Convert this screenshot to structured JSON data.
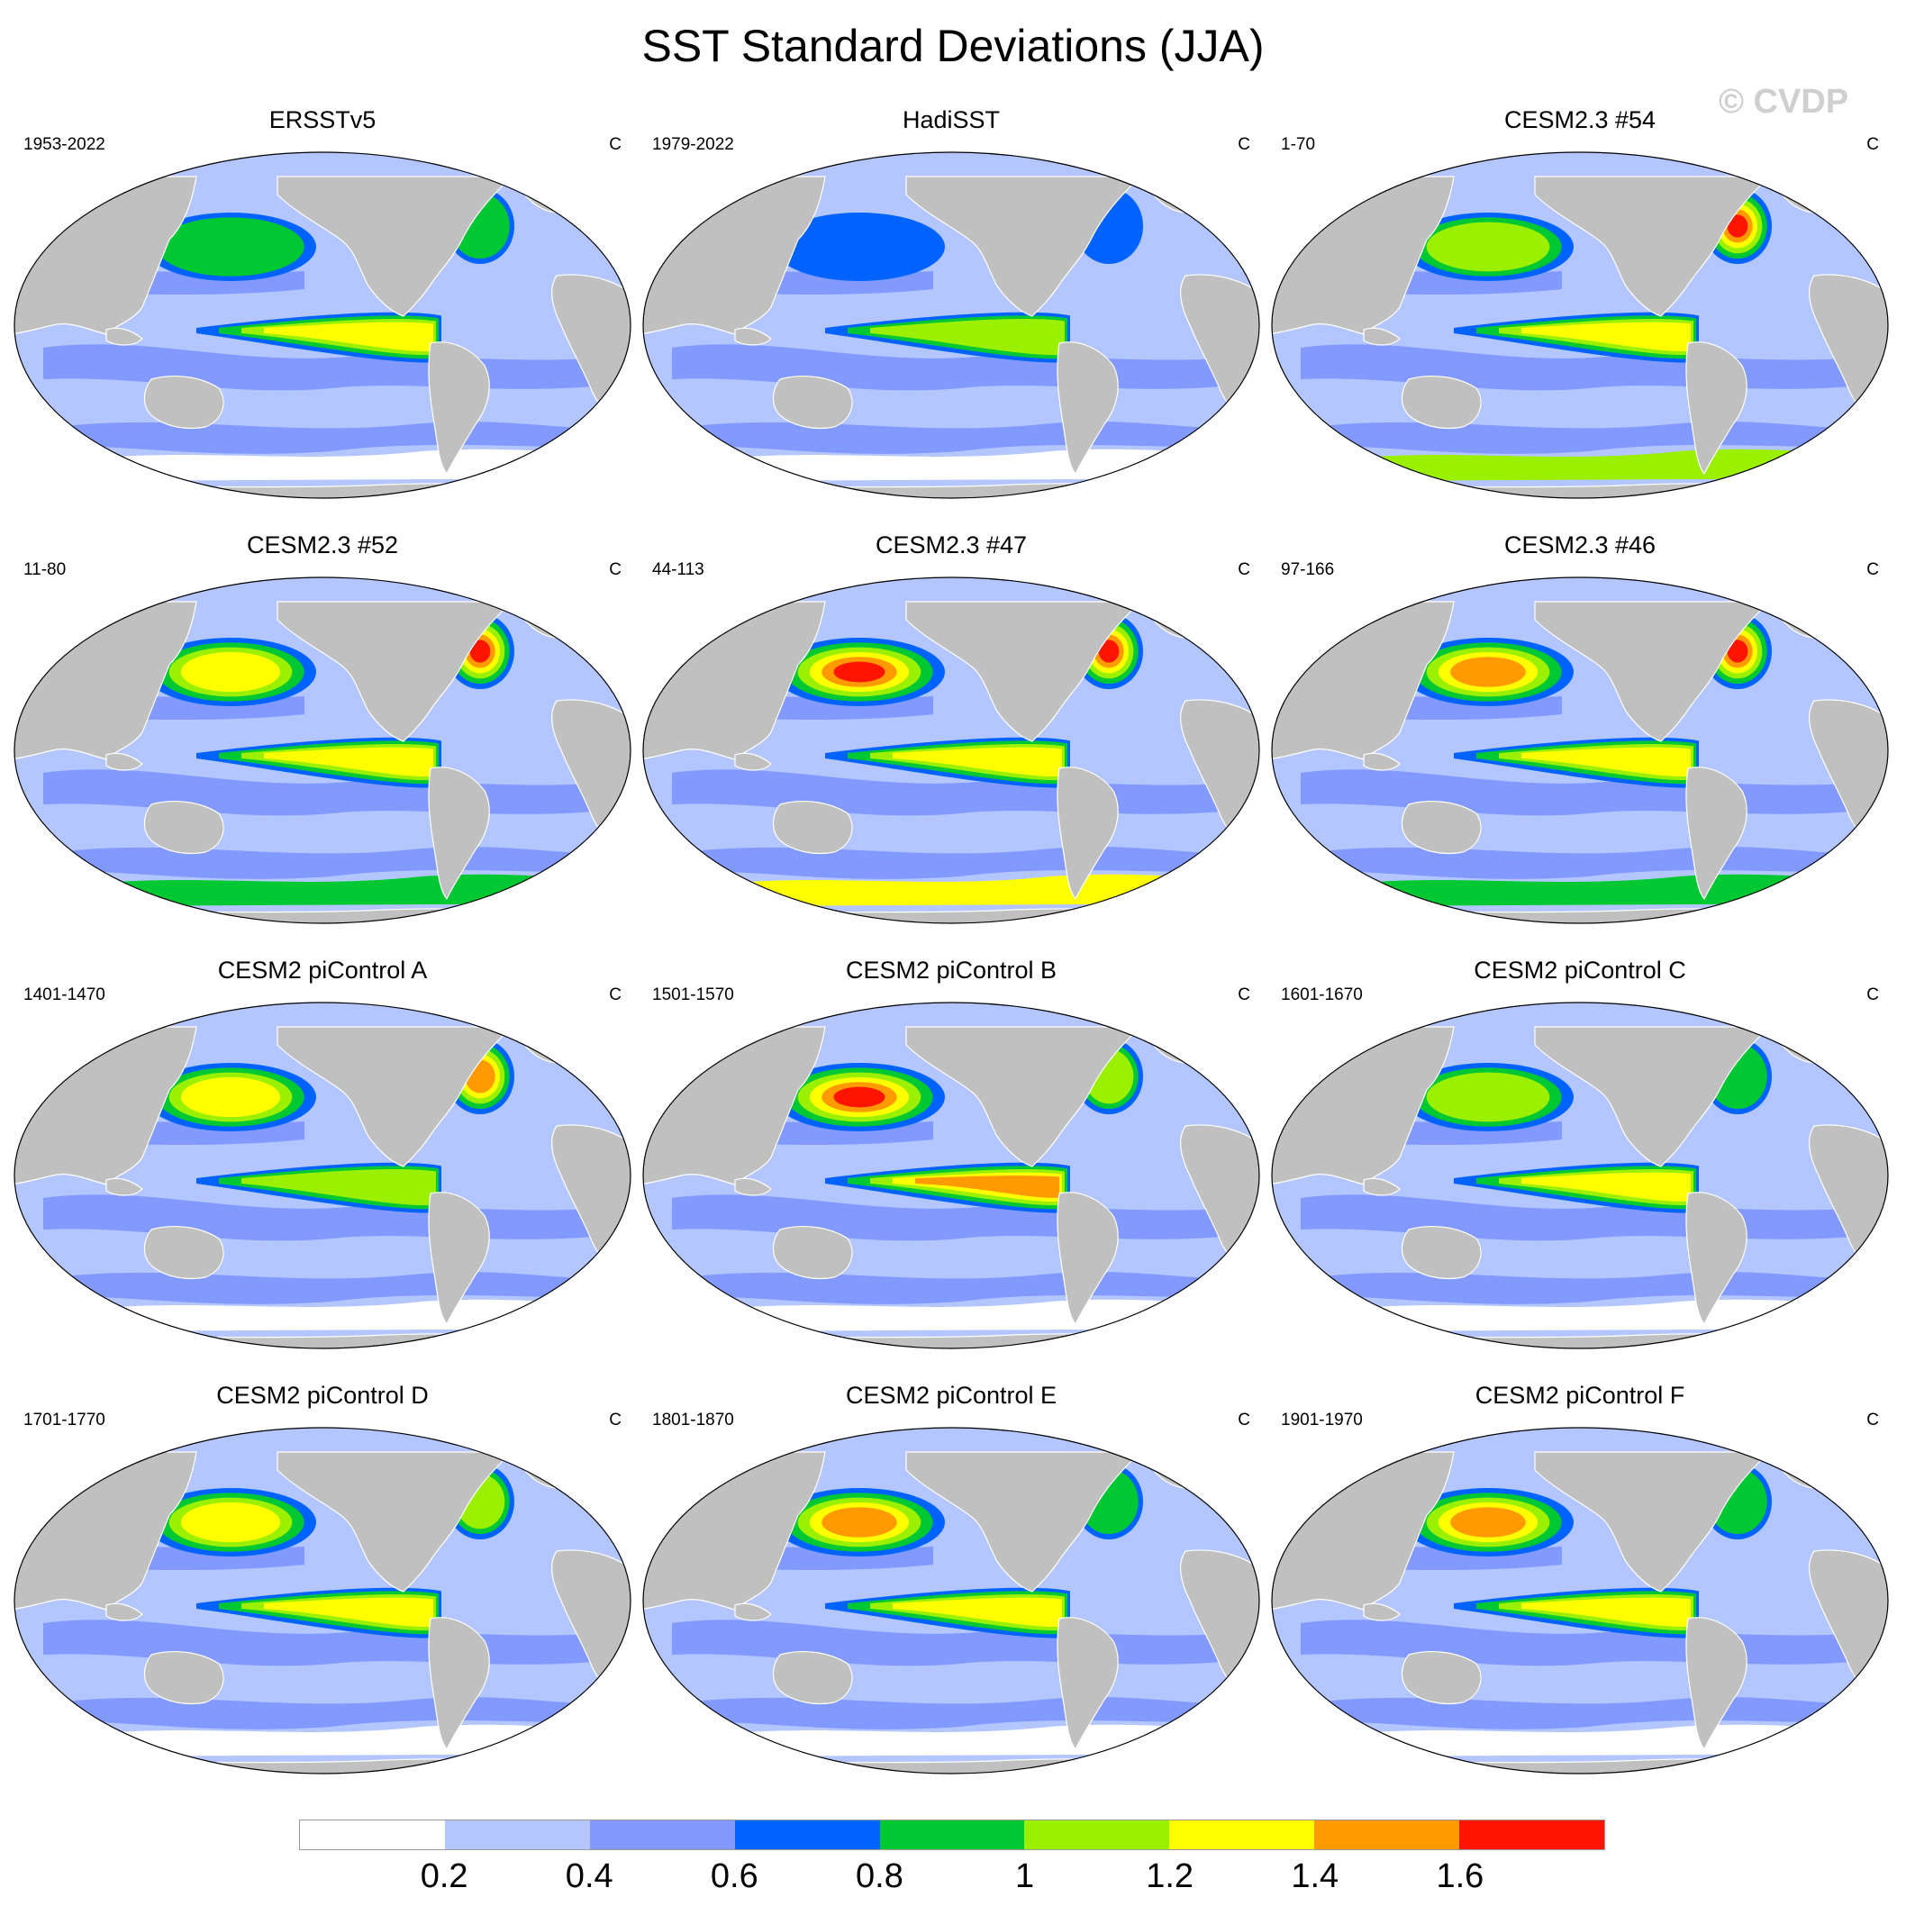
{
  "figure": {
    "title": "SST Standard Deviations (JJA)",
    "watermark": "© CVDP"
  },
  "colors": {
    "land": "#c0c0c0",
    "levels": [
      "#ffffff",
      "#b4c6ff",
      "#8299ff",
      "#0063ff",
      "#00c832",
      "#9bf000",
      "#ffff00",
      "#ff9b00",
      "#ff1400"
    ]
  },
  "panels": [
    {
      "title": "ERSSTv5",
      "period": "1953-2022",
      "unit": "C",
      "enso_level": 6,
      "npac_level": 4,
      "natl_level": 4,
      "south_level": 0
    },
    {
      "title": "HadiSST",
      "period": "1979-2022",
      "unit": "C",
      "enso_level": 5,
      "npac_level": 3,
      "natl_level": 3,
      "south_level": 0
    },
    {
      "title": "CESM2.3 #54",
      "period": "1-70",
      "unit": "C",
      "enso_level": 6,
      "npac_level": 5,
      "natl_level": 8,
      "south_level": 5
    },
    {
      "title": "CESM2.3 #52",
      "period": "11-80",
      "unit": "C",
      "enso_level": 6,
      "npac_level": 6,
      "natl_level": 8,
      "south_level": 4
    },
    {
      "title": "CESM2.3 #47",
      "period": "44-113",
      "unit": "C",
      "enso_level": 6,
      "npac_level": 8,
      "natl_level": 8,
      "south_level": 6
    },
    {
      "title": "CESM2.3 #46",
      "period": "97-166",
      "unit": "C",
      "enso_level": 6,
      "npac_level": 7,
      "natl_level": 8,
      "south_level": 4
    },
    {
      "title": "CESM2 piControl A",
      "period": "1401-1470",
      "unit": "C",
      "enso_level": 5,
      "npac_level": 6,
      "natl_level": 7,
      "south_level": 0
    },
    {
      "title": "CESM2 piControl B",
      "period": "1501-1570",
      "unit": "C",
      "enso_level": 7,
      "npac_level": 8,
      "natl_level": 5,
      "south_level": 0
    },
    {
      "title": "CESM2 piControl C",
      "period": "1601-1670",
      "unit": "C",
      "enso_level": 6,
      "npac_level": 5,
      "natl_level": 4,
      "south_level": 0
    },
    {
      "title": "CESM2 piControl D",
      "period": "1701-1770",
      "unit": "C",
      "enso_level": 6,
      "npac_level": 6,
      "natl_level": 5,
      "south_level": 0
    },
    {
      "title": "CESM2 piControl E",
      "period": "1801-1870",
      "unit": "C",
      "enso_level": 6,
      "npac_level": 7,
      "natl_level": 4,
      "south_level": 0
    },
    {
      "title": "CESM2 piControl F",
      "period": "1901-1970",
      "unit": "C",
      "enso_level": 6,
      "npac_level": 7,
      "natl_level": 4,
      "south_level": 0
    }
  ],
  "colorbar": {
    "labels": [
      "0.2",
      "0.4",
      "0.6",
      "0.8",
      "1",
      "1.2",
      "1.4",
      "1.6"
    ]
  }
}
